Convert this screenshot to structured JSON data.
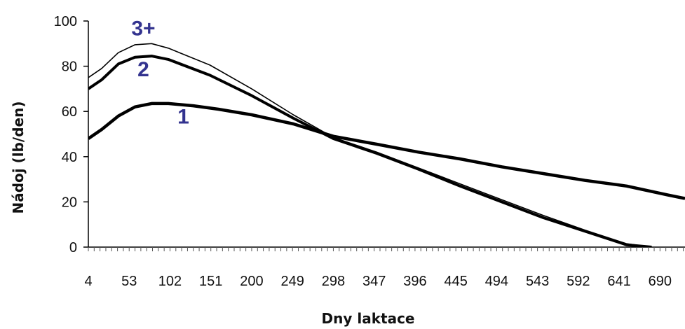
{
  "chart_data": {
    "type": "line",
    "title": "",
    "xlabel": "Dny laktace",
    "ylabel": "Nádoj (lb/den)",
    "xlim": [
      4,
      720
    ],
    "ylim": [
      0,
      100
    ],
    "yticks": [
      0,
      20,
      40,
      60,
      80,
      100
    ],
    "xticks": [
      4,
      53,
      102,
      151,
      200,
      249,
      298,
      347,
      396,
      445,
      494,
      543,
      592,
      641,
      690
    ],
    "ytick_labels": [
      "0",
      "20",
      "40",
      "60",
      "80",
      "100"
    ],
    "xtick_labels": [
      "4",
      "53",
      "102",
      "151",
      "200",
      "249",
      "298",
      "347",
      "396",
      "445",
      "494",
      "543",
      "592",
      "641",
      "690"
    ],
    "grid": false,
    "label_color": "#33338f",
    "series": [
      {
        "name": "1",
        "color": "#000000",
        "x": [
          4,
          20,
          40,
          60,
          80,
          100,
          130,
          160,
          200,
          250,
          298,
          350,
          400,
          450,
          500,
          550,
          600,
          650,
          700,
          720
        ],
        "y": [
          48,
          52,
          58,
          62,
          63.5,
          63.5,
          62.5,
          61,
          58.5,
          54.5,
          49,
          45.5,
          42,
          39,
          35.5,
          32.5,
          29.5,
          27,
          23,
          21.5
        ]
      },
      {
        "name": "2",
        "color": "#000000",
        "x": [
          4,
          20,
          40,
          60,
          80,
          100,
          150,
          200,
          250,
          298,
          350,
          400,
          450,
          500,
          550,
          600,
          650,
          680
        ],
        "y": [
          70,
          74,
          81,
          84,
          84.5,
          83,
          76,
          67,
          57,
          48,
          41.5,
          34.5,
          27,
          20,
          13,
          7,
          1,
          0
        ]
      },
      {
        "name": "3+",
        "color": "#000000",
        "x": [
          4,
          20,
          40,
          60,
          80,
          100,
          150,
          200,
          250,
          298,
          350,
          400,
          450,
          500,
          550,
          600,
          650,
          680
        ],
        "y": [
          75,
          79,
          86,
          89.5,
          90,
          88,
          80.5,
          70,
          58.5,
          48.5,
          42,
          35,
          28,
          21,
          14,
          7.5,
          1.5,
          0
        ]
      }
    ],
    "annotations": [
      {
        "text": "3+",
        "x": 70,
        "y": 97
      },
      {
        "text": "2",
        "x": 70,
        "y": 79
      },
      {
        "text": "1",
        "x": 118,
        "y": 58
      }
    ]
  }
}
